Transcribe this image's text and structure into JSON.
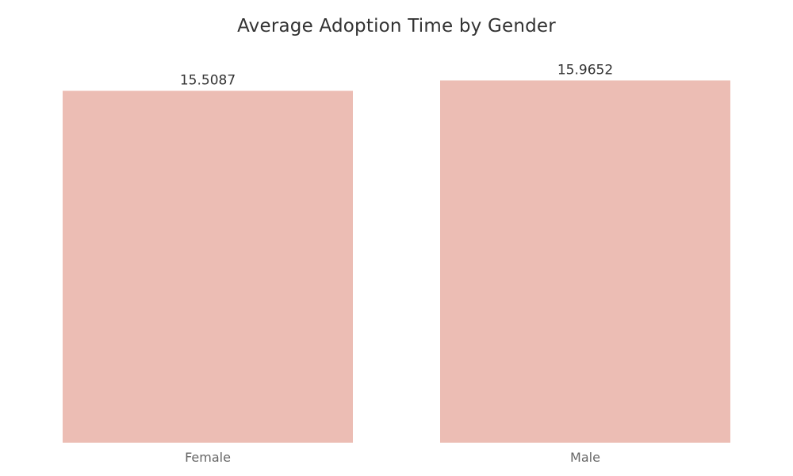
{
  "chart_data": {
    "type": "bar",
    "title": "Average Adoption Time by Gender",
    "categories": [
      "Female",
      "Male"
    ],
    "values": [
      15.5087,
      15.9652
    ],
    "value_labels": [
      "15.5087",
      "15.9652"
    ],
    "xlabel": "",
    "ylabel": "",
    "ylim": [
      0,
      16.4
    ],
    "grid": false,
    "legend": "none",
    "bar_color": "#ecbdb4"
  }
}
